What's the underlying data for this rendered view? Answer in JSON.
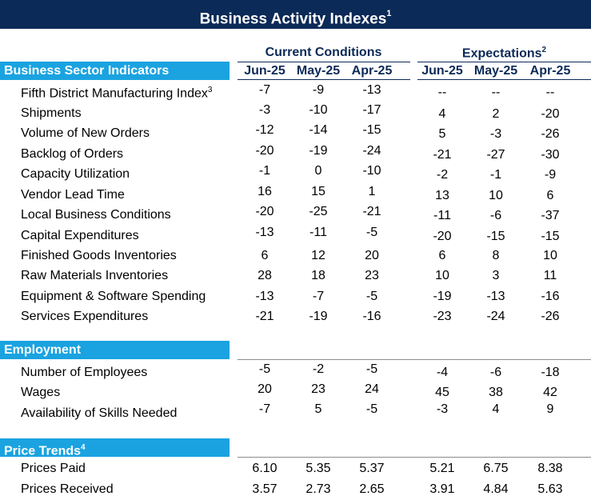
{
  "title": "Business Activity Indexes",
  "title_sup": "1",
  "groups": {
    "current": "Current Conditions",
    "expectations": "Expectations",
    "expectations_sup": "2"
  },
  "columns": [
    "Jun-25",
    "May-25",
    "Apr-25",
    "Jun-25",
    "May-25",
    "Apr-25"
  ],
  "sections": [
    {
      "label": "Business Sector Indicators",
      "sup": "",
      "rows": [
        {
          "label": "Fifth District Manufacturing Index",
          "sup": "3",
          "values": [
            "-7",
            "-9",
            "-13",
            "--",
            "--",
            "--"
          ]
        },
        {
          "label": "Shipments",
          "sup": "",
          "values": [
            "-3",
            "-10",
            "-17",
            "4",
            "2",
            "-20"
          ]
        },
        {
          "label": "Volume of New Orders",
          "sup": "",
          "values": [
            "-12",
            "-14",
            "-15",
            "5",
            "-3",
            "-26"
          ]
        },
        {
          "label": "Backlog of Orders",
          "sup": "",
          "values": [
            "-20",
            "-19",
            "-24",
            "-21",
            "-27",
            "-30"
          ]
        },
        {
          "label": "Capacity Utilization",
          "sup": "",
          "values": [
            "-1",
            "0",
            "-10",
            "-2",
            "-1",
            "-9"
          ]
        },
        {
          "label": "Vendor Lead Time",
          "sup": "",
          "values": [
            "16",
            "15",
            "1",
            "13",
            "10",
            "6"
          ]
        },
        {
          "label": "Local Business Conditions",
          "sup": "",
          "values": [
            "-20",
            "-25",
            "-21",
            "-11",
            "-6",
            "-37"
          ]
        },
        {
          "label": "Capital Expenditures",
          "sup": "",
          "values": [
            "-13",
            "-11",
            "-5",
            "-20",
            "-15",
            "-15"
          ]
        },
        {
          "label": "Finished Goods Inventories",
          "sup": "",
          "values": [
            "6",
            "12",
            "20",
            "6",
            "8",
            "10"
          ]
        },
        {
          "label": "Raw Materials Inventories",
          "sup": "",
          "values": [
            "28",
            "18",
            "23",
            "10",
            "3",
            "11"
          ]
        },
        {
          "label": "Equipment & Software Spending",
          "sup": "",
          "values": [
            "-13",
            "-7",
            "-5",
            "-19",
            "-13",
            "-16"
          ]
        },
        {
          "label": "Services Expenditures",
          "sup": "",
          "values": [
            "-21",
            "-19",
            "-16",
            "-23",
            "-24",
            "-26"
          ]
        }
      ]
    },
    {
      "label": "Employment",
      "sup": "",
      "rows": [
        {
          "label": "Number of Employees",
          "sup": "",
          "values": [
            "-5",
            "-2",
            "-5",
            "-4",
            "-6",
            "-18"
          ]
        },
        {
          "label": "Wages",
          "sup": "",
          "values": [
            "20",
            "23",
            "24",
            "45",
            "38",
            "42"
          ]
        },
        {
          "label": "Availability of Skills Needed",
          "sup": "",
          "values": [
            "-7",
            "5",
            "-5",
            "-3",
            "4",
            "9"
          ]
        }
      ]
    },
    {
      "label": "Price Trends",
      "sup": "4",
      "rows": [
        {
          "label": "Prices Paid",
          "sup": "",
          "values": [
            "6.10",
            "5.35",
            "5.37",
            "5.21",
            "6.75",
            "8.38"
          ]
        },
        {
          "label": "Prices Received",
          "sup": "",
          "values": [
            "3.57",
            "2.73",
            "2.65",
            "3.91",
            "4.84",
            "5.63"
          ]
        }
      ]
    }
  ],
  "colors": {
    "title_bg": "#0b2a57",
    "band_bg": "#1aa3e0",
    "header_text": "#0b2a57"
  }
}
